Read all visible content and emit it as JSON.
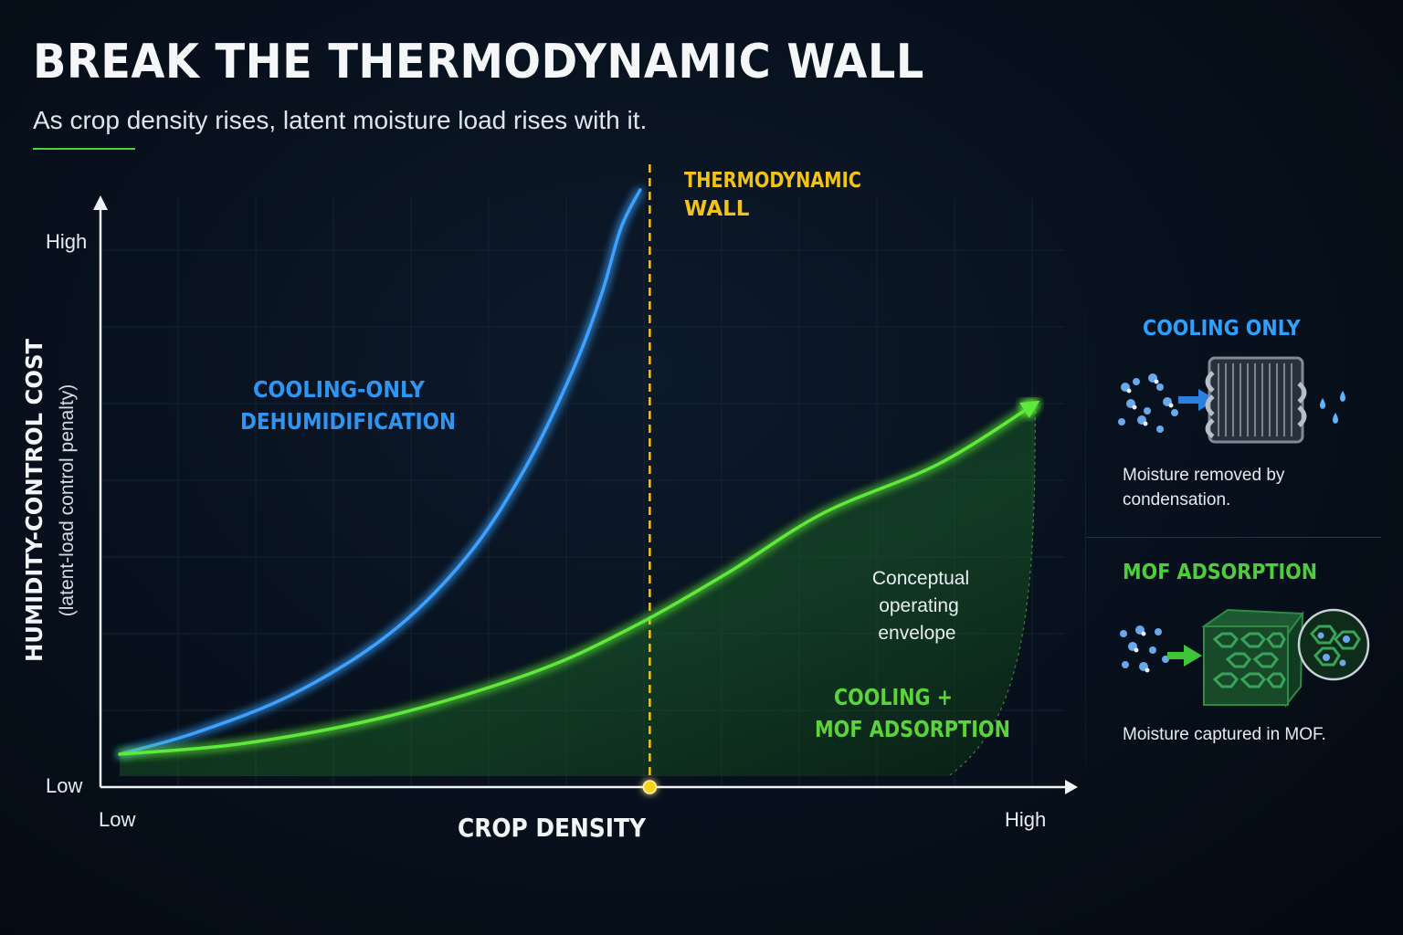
{
  "header": {
    "title": "BREAK THE THERMODYNAMIC WALL",
    "subtitle": "As crop density rises, latent moisture load rises with it."
  },
  "chart_data": {
    "type": "line",
    "xlabel": "CROP DENSITY",
    "ylabel": "HUMIDITY-CONTROL COST",
    "ylabel_sub": "(latent-load control penalty)",
    "x_tick_labels": [
      "Low",
      "High"
    ],
    "y_tick_labels": [
      "Low",
      "High"
    ],
    "xlim": [
      0,
      1
    ],
    "ylim": [
      0,
      1
    ],
    "grid": true,
    "series": [
      {
        "name": "COOLING-ONLY DEHUMIDIFICATION",
        "label_lines": [
          "COOLING-ONLY",
          "DEHUMIDIFICATION"
        ],
        "color": "#3ea2ff",
        "x": [
          0.02,
          0.1,
          0.2,
          0.3,
          0.38,
          0.44,
          0.49,
          0.52,
          0.54,
          0.56
        ],
        "y": [
          0.06,
          0.1,
          0.17,
          0.28,
          0.42,
          0.58,
          0.76,
          0.9,
          1.02,
          1.09
        ]
      },
      {
        "name": "COOLING + MOF ADSORPTION",
        "label_lines": [
          "COOLING +",
          "MOF ADSORPTION"
        ],
        "color": "#5ee93a",
        "x": [
          0.02,
          0.15,
          0.3,
          0.45,
          0.55,
          0.65,
          0.75,
          0.87,
          0.97
        ],
        "y": [
          0.06,
          0.08,
          0.13,
          0.21,
          0.29,
          0.39,
          0.5,
          0.59,
          0.7
        ]
      }
    ],
    "annotations": {
      "wall_label_lines": [
        "THERMODYNAMIC",
        "WALL"
      ],
      "wall_x": 0.57,
      "wall_color": "#f2c218",
      "envelope_label_lines": [
        "Conceptual",
        "operating",
        "envelope"
      ]
    }
  },
  "side_panel": {
    "cooling": {
      "heading": "COOLING ONLY",
      "heading_color": "#2ea0ff",
      "caption_lines": [
        "Moisture removed by",
        "condensation."
      ],
      "icon": "condenser-coil-icon"
    },
    "mof": {
      "heading": "MOF ADSORPTION",
      "heading_color": "#4ccf3a",
      "caption": "Moisture captured in MOF.",
      "icon": "mof-lattice-icon"
    }
  }
}
